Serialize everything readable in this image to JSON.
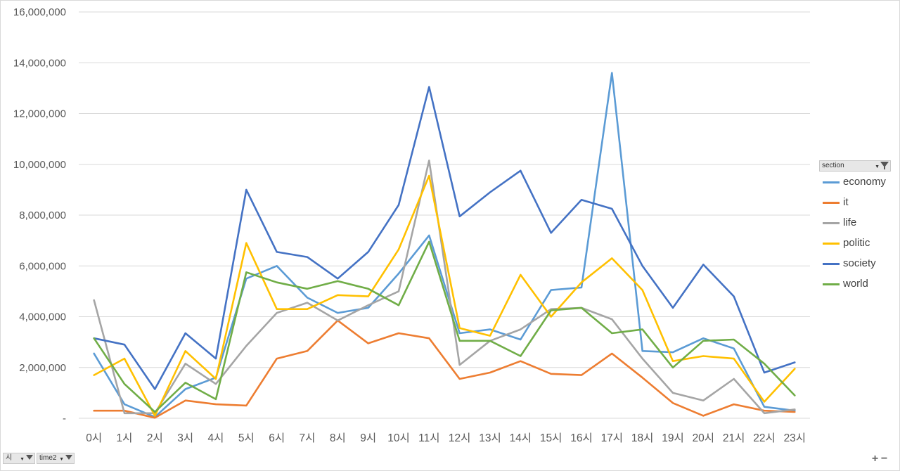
{
  "chart_data": {
    "type": "line",
    "categories": [
      "0시",
      "1시",
      "2시",
      "3시",
      "4시",
      "5시",
      "6시",
      "7시",
      "8시",
      "9시",
      "10시",
      "11시",
      "12시",
      "13시",
      "14시",
      "15시",
      "16시",
      "17시",
      "18시",
      "19시",
      "20시",
      "21시",
      "22시",
      "23시"
    ],
    "ylim": [
      0,
      16000000
    ],
    "yticks": [
      "-",
      "2,000,000",
      "4,000,000",
      "6,000,000",
      "8,000,000",
      "10,000,000",
      "12,000,000",
      "14,000,000",
      "16,000,000"
    ],
    "grid": true,
    "legend_position": "right",
    "series": [
      {
        "name": "economy",
        "color": "#5B9BD5",
        "values": [
          2550000,
          550000,
          50000,
          1150000,
          1600000,
          5500000,
          6000000,
          4750000,
          4150000,
          4350000,
          5700000,
          7200000,
          3350000,
          3500000,
          3100000,
          5050000,
          5150000,
          13600000,
          2650000,
          2600000,
          3150000,
          2750000,
          450000,
          300000
        ]
      },
      {
        "name": "it",
        "color": "#ED7D31",
        "values": [
          300000,
          300000,
          20000,
          700000,
          550000,
          500000,
          2350000,
          2650000,
          3850000,
          2950000,
          3350000,
          3150000,
          1550000,
          1800000,
          2250000,
          1750000,
          1700000,
          2550000,
          1600000,
          600000,
          100000,
          550000,
          300000,
          250000
        ]
      },
      {
        "name": "life",
        "color": "#A5A5A5",
        "values": [
          4650000,
          200000,
          200000,
          2150000,
          1350000,
          2850000,
          4150000,
          4550000,
          3850000,
          4450000,
          5000000,
          10150000,
          2100000,
          3050000,
          3500000,
          4300000,
          4350000,
          3900000,
          2350000,
          1000000,
          700000,
          1550000,
          200000,
          350000
        ]
      },
      {
        "name": "politic",
        "color": "#FFC000",
        "values": [
          1700000,
          2350000,
          100000,
          2650000,
          1550000,
          6900000,
          4300000,
          4300000,
          4850000,
          4800000,
          6650000,
          9550000,
          3550000,
          3250000,
          5650000,
          4000000,
          5350000,
          6300000,
          5050000,
          2250000,
          2450000,
          2350000,
          650000,
          1950000
        ]
      },
      {
        "name": "society",
        "color": "#4472C4",
        "values": [
          3150000,
          2900000,
          1150000,
          3350000,
          2350000,
          9000000,
          6550000,
          6350000,
          5500000,
          6550000,
          8400000,
          13050000,
          7950000,
          8900000,
          9750000,
          7300000,
          8600000,
          8250000,
          6000000,
          4350000,
          6050000,
          4800000,
          1800000,
          2200000
        ]
      },
      {
        "name": "world",
        "color": "#70AD47",
        "values": [
          3150000,
          1350000,
          250000,
          1400000,
          750000,
          5750000,
          5350000,
          5100000,
          5400000,
          5100000,
          4450000,
          6950000,
          3050000,
          3050000,
          2450000,
          4250000,
          4350000,
          3350000,
          3500000,
          2000000,
          3050000,
          3100000,
          2150000,
          900000
        ]
      }
    ]
  },
  "legend": {
    "field_label": "section"
  },
  "field_buttons": {
    "row_field": "시",
    "filter_field": "time2"
  },
  "zoom": {
    "plus": "+",
    "minus": "−"
  }
}
